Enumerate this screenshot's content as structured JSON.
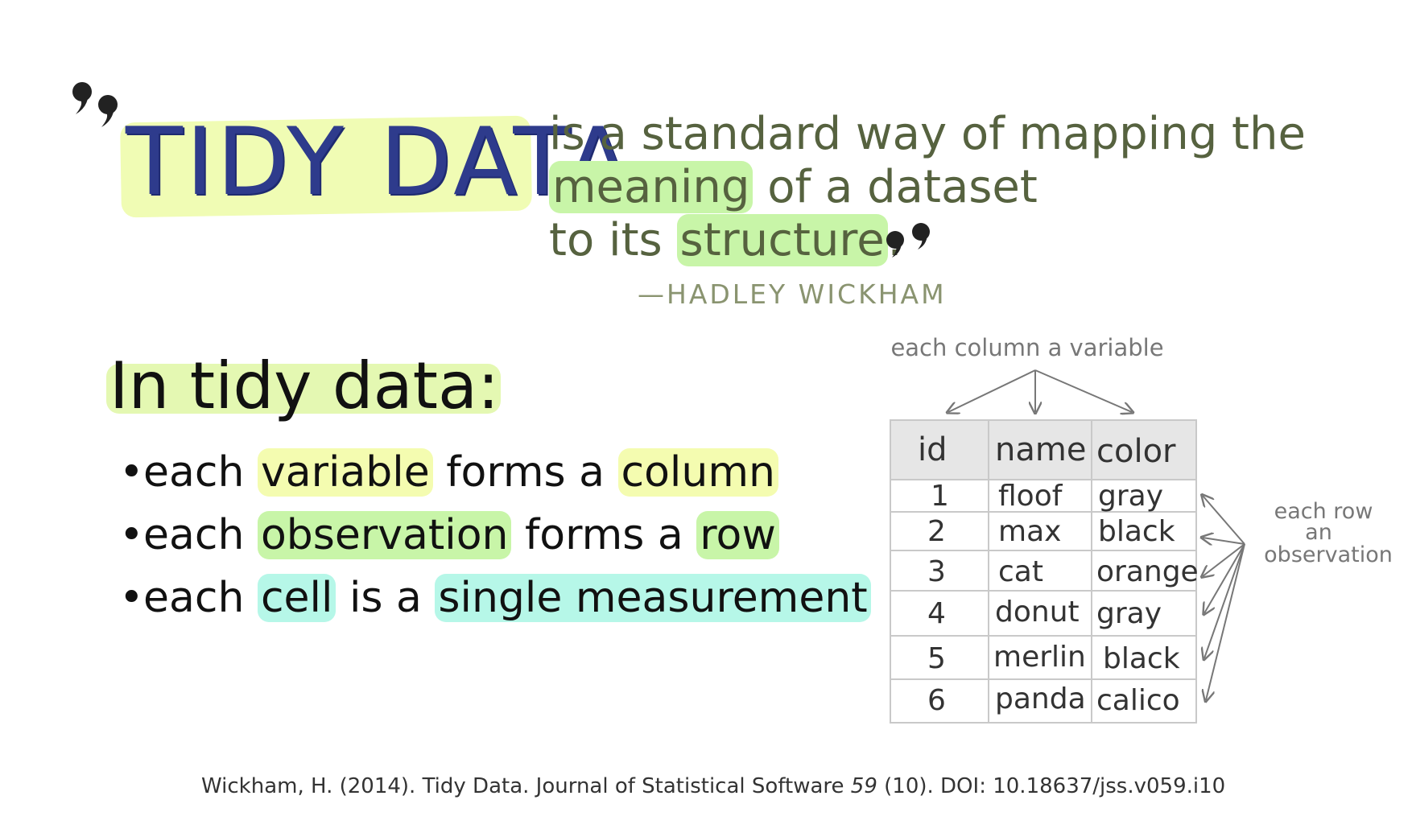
{
  "quote": {
    "title": "TIDY DATA",
    "line1": "is a standard way of mapping the",
    "line2_highlight": "meaning",
    "line2_rest": " of a dataset",
    "line3_start": "to its ",
    "line3_highlight": "structure",
    "line3_end": ".",
    "author": "—HADLEY WICKHAM"
  },
  "principles": {
    "heading": "In tidy data:",
    "bullets": [
      {
        "p1": "each ",
        "h1": "variable",
        "p2": " forms a ",
        "h2": "column"
      },
      {
        "p1": "each ",
        "h1": "observation",
        "p2": " forms a ",
        "h2": "row"
      },
      {
        "p1": "each ",
        "h1": "cell",
        "p2": " is a ",
        "h2": "single measurement"
      }
    ]
  },
  "diagram": {
    "column_annotation": "each column a variable",
    "row_annotation": [
      "each row",
      "an",
      "observation"
    ],
    "table": {
      "headers": [
        "id",
        "name",
        "color"
      ],
      "rows": [
        [
          "1",
          "floof",
          "gray"
        ],
        [
          "2",
          "max",
          "black"
        ],
        [
          "3",
          "cat",
          "orange"
        ],
        [
          "4",
          "donut",
          "gray"
        ],
        [
          "5",
          "merlin",
          "black"
        ],
        [
          "6",
          "panda",
          "calico"
        ]
      ]
    }
  },
  "citation": {
    "before": "Wickham, H. (2014). Tidy Data. Journal of Statistical Software ",
    "volume": "59",
    "after": " (10). DOI: 10.18637/jss.v059.i10"
  },
  "colors": {
    "title": "#2e3b8c",
    "quote_text": "#56623f",
    "highlight_yellow": "#f4fcb0",
    "highlight_green": "#c8f5a8",
    "highlight_cyan": "#b6f7e8",
    "annotation": "#777777"
  }
}
